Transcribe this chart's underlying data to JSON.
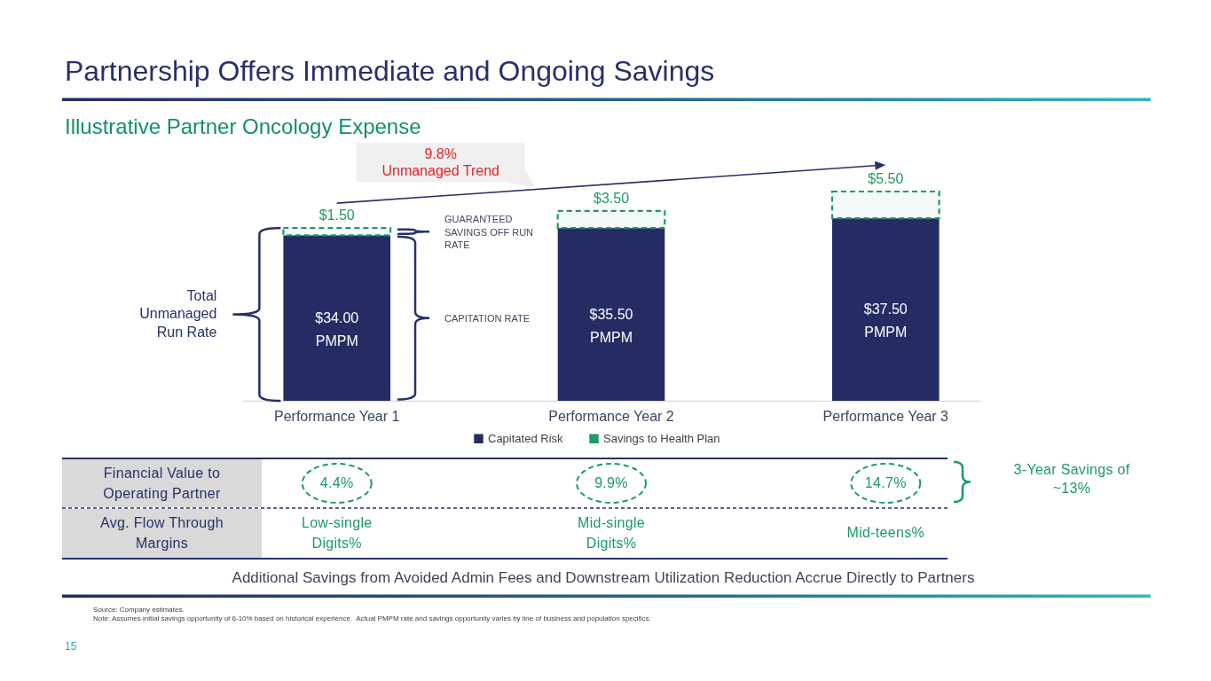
{
  "chart_data": {
    "type": "bar",
    "title": "Partnership Offers Immediate and Ongoing Savings",
    "subtitle": "Illustrative Partner Oncology Expense",
    "categories": [
      "Performance Year 1",
      "Performance Year 2",
      "Performance Year 3"
    ],
    "stacked": true,
    "series": [
      {
        "name": "Capitated Risk",
        "color": "#252b63",
        "values": [
          34.0,
          35.5,
          37.5
        ],
        "value_labels": [
          "$34.00 PMPM",
          "$35.50 PMPM",
          "$37.50 PMPM"
        ]
      },
      {
        "name": "Savings to Health Plan",
        "color": "#1f9a63",
        "values": [
          1.5,
          3.5,
          5.5
        ],
        "value_labels": [
          "$1.50",
          "$3.50",
          "$5.50"
        ],
        "line_style": "dashed"
      }
    ],
    "legend": "bottom",
    "tick_labels": "x",
    "annotations": [
      "9.8% Unmanaged Trend",
      "GUARANTEED SAVINGS OFF RUN RATE",
      "CAPITATION RATE",
      "Total Unmanaged Run Rate",
      "Financial Value to Operating Partner",
      "4.4%",
      "9.9%",
      "14.7%",
      "Avg. Flow Through Margins",
      "Low-single Digits%",
      "Mid-single Digits%",
      "Mid-teens%",
      "3-Year Savings of ~13%",
      "Additional Savings from Avoided Admin Fees and Downstream Utilization Reduction Accrue Directly to Partners",
      "Source: Company estimates.",
      "Note: Assumes initial savings opportunity of 6-10% based on historical experience.  Actual PMPM rate and savings opportunity varies by line of business and population specifics.",
      "15"
    ]
  }
}
